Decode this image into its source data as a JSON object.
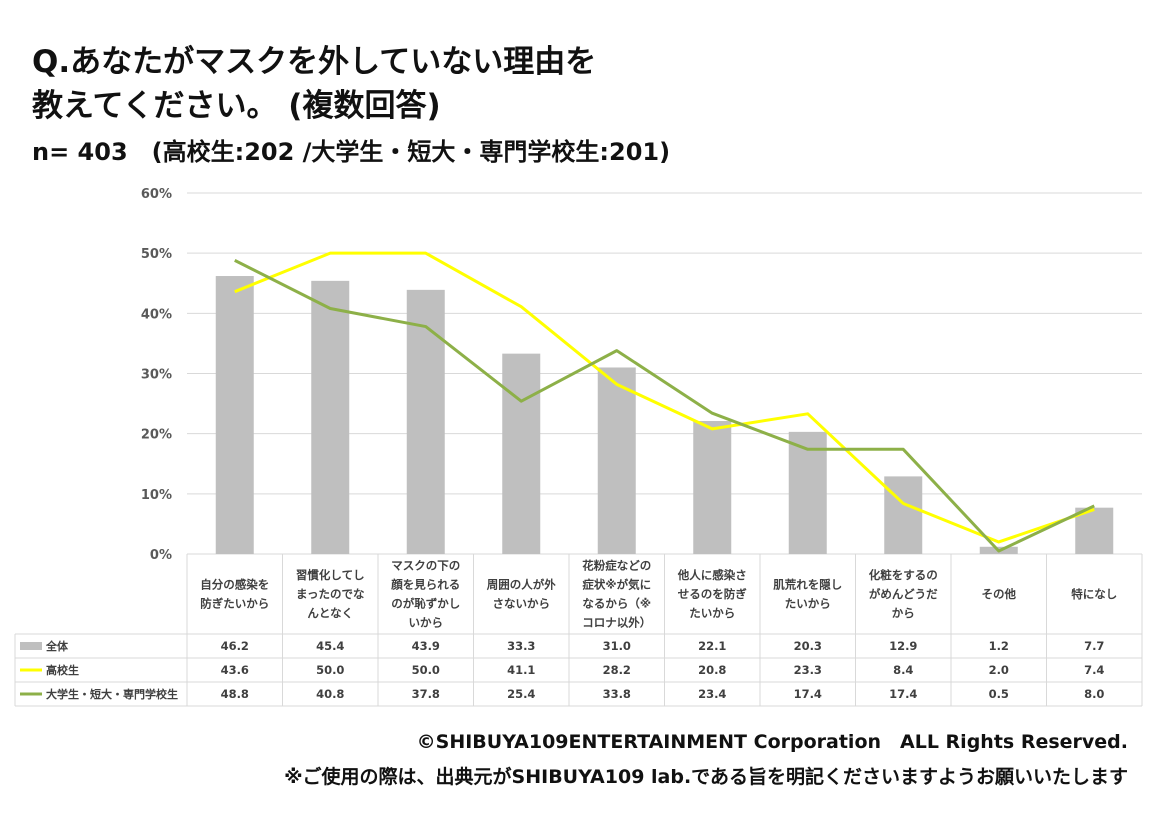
{
  "title_line1": "Q.あなたがマスクを外していない理由を",
  "title_line2": "教えてください。 (複数回答)",
  "subtitle": "n= 403　(高校生:202 /大学生・短大・専門学校生:201)",
  "footer_copyright": "©SHIBUYA109ENTERTAINMENT Corporation　ALL Rights Reserved.",
  "footer_note": "※ご使用の際は、出典元がSHIBUYA109 lab.である旨を明記くださいますようお願いいたします",
  "chart_data": {
    "type": "bar",
    "ylim": [
      0,
      60
    ],
    "yticks": [
      "0%",
      "10%",
      "20%",
      "30%",
      "40%",
      "50%",
      "60%"
    ],
    "grid": true,
    "categories": [
      "自分の感染を防ぎたいから",
      "習慣化してしまったのでなんとなく",
      "マスクの下の顔を見られるのが恥ずかしいから",
      "周囲の人が外さないから",
      "花粉症などの症状※が気になるから（※コロナ以外）",
      "他人に感染させるのを防ぎたいから",
      "肌荒れを隠したいから",
      "化粧をするのがめんどうだから",
      "その他",
      "特になし"
    ],
    "series": [
      {
        "name": "全体",
        "type": "bar",
        "color": "#bfbfbf",
        "values": [
          "46.2",
          "45.4",
          "43.9",
          "33.3",
          "31.0",
          "22.1",
          "20.3",
          "12.9",
          "1.2",
          "7.7"
        ]
      },
      {
        "name": "高校生",
        "type": "line",
        "color": "#ffff00",
        "values": [
          "43.6",
          "50.0",
          "50.0",
          "41.1",
          "28.2",
          "20.8",
          "23.3",
          "8.4",
          "2.0",
          "7.4"
        ]
      },
      {
        "name": "大学生・短大・専門学校生",
        "type": "line",
        "color": "#8db048",
        "values": [
          "48.8",
          "40.8",
          "37.8",
          "25.4",
          "33.8",
          "23.4",
          "17.4",
          "17.4",
          "0.5",
          "8.0"
        ]
      }
    ]
  }
}
